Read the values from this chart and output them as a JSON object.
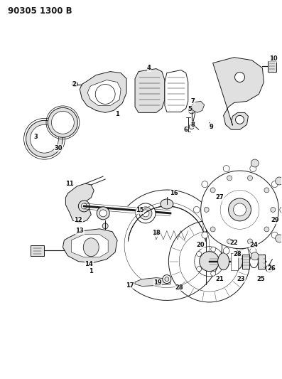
{
  "title": "90305 1300 B",
  "background_color": "#ffffff",
  "figsize": [
    3.97,
    5.33
  ],
  "dpi": 100,
  "line_color": "#1a1a1a",
  "label_color": "#111111",
  "label_fontsize": 6.0,
  "title_fontsize": 8.5,
  "gray_fill": "#c8c8c8",
  "light_gray": "#e0e0e0",
  "mid_gray": "#aaaaaa"
}
